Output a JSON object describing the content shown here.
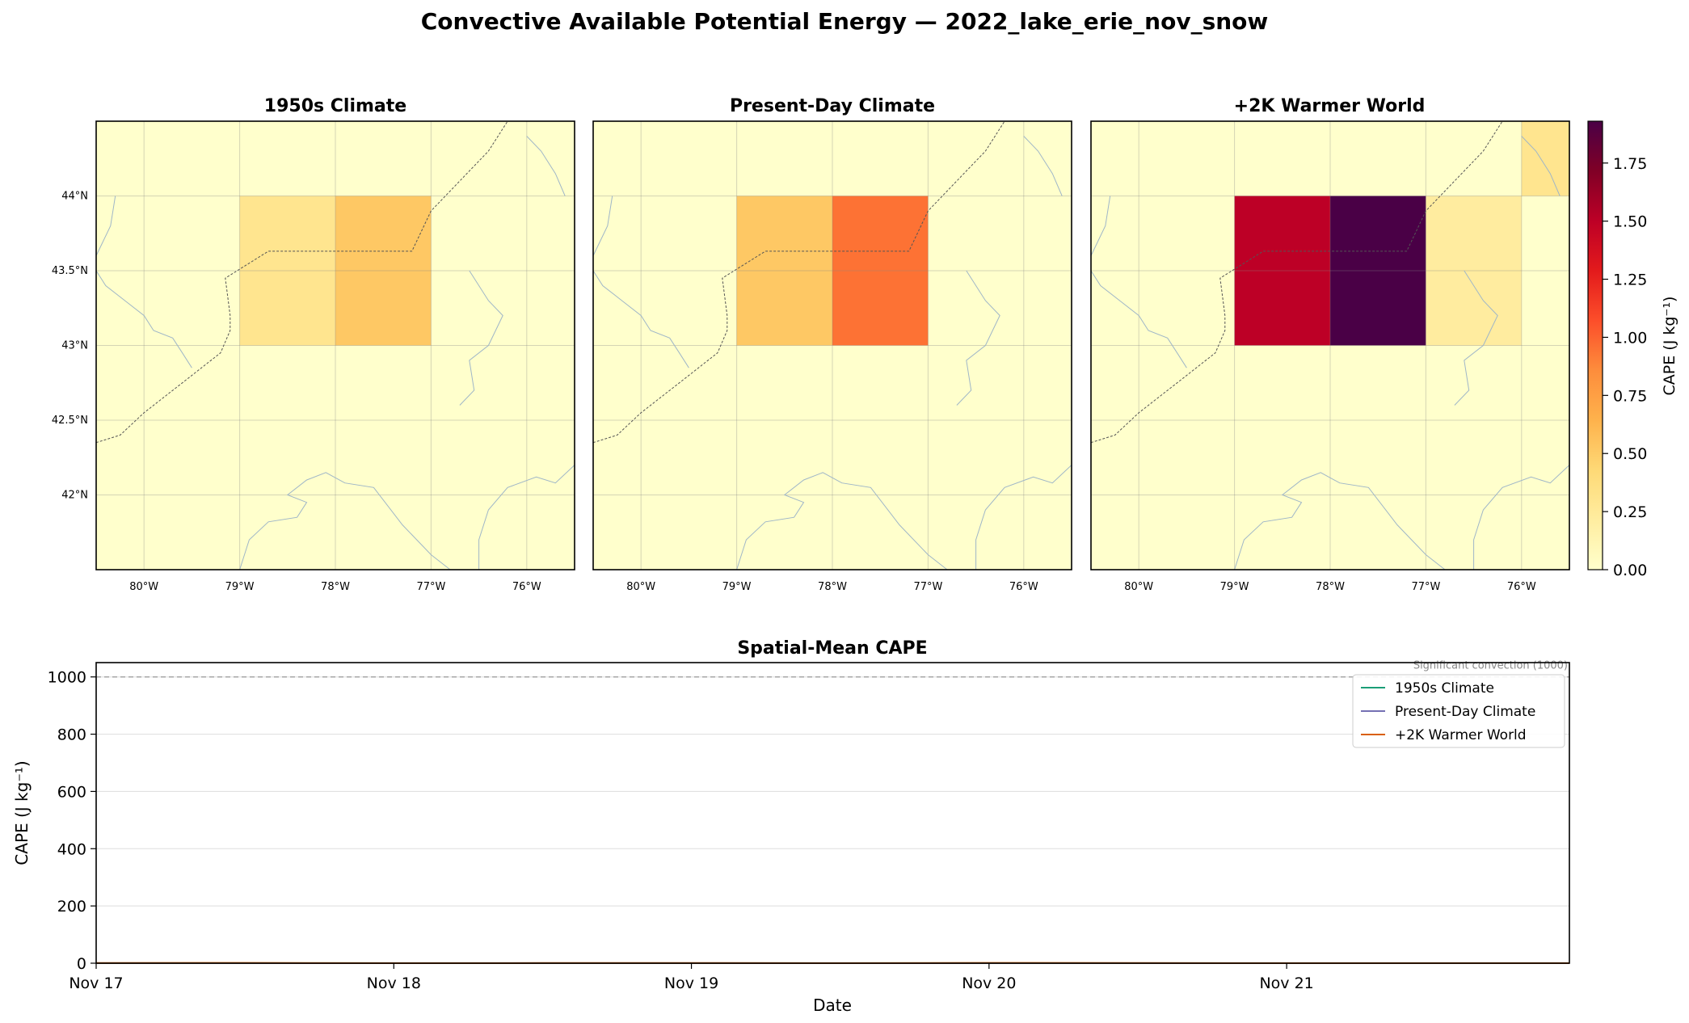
{
  "figure": {
    "suptitle": "Convective Available Potential Energy — 2022_lake_erie_nov_snow"
  },
  "chart_data": [
    {
      "type": "heatmap",
      "title": "1950s Climate",
      "lon_range": [
        -80.5,
        -75.5
      ],
      "lat_range": [
        41.5,
        44.5
      ],
      "lon_ticks": [
        "80°W",
        "79°W",
        "78°W",
        "77°W",
        "76°W"
      ],
      "lat_ticks": [
        "42°N",
        "42.5°N",
        "43°N",
        "43.5°N",
        "44°N"
      ],
      "cells": [
        {
          "lon": [
            -79,
            -78
          ],
          "lat": [
            43,
            44
          ],
          "value": 0.3
        },
        {
          "lon": [
            -78,
            -77
          ],
          "lat": [
            43,
            44
          ],
          "value": 0.52
        }
      ],
      "background_value": 0.0
    },
    {
      "type": "heatmap",
      "title": "Present-Day Climate",
      "lon_range": [
        -80.5,
        -75.5
      ],
      "lat_range": [
        41.5,
        44.5
      ],
      "lon_ticks": [
        "80°W",
        "79°W",
        "78°W",
        "77°W",
        "76°W"
      ],
      "cells": [
        {
          "lon": [
            -79,
            -78
          ],
          "lat": [
            43,
            44
          ],
          "value": 0.52
        },
        {
          "lon": [
            -78,
            -77
          ],
          "lat": [
            43,
            44
          ],
          "value": 0.95
        }
      ],
      "background_value": 0.0
    },
    {
      "type": "heatmap",
      "title": "+2K Warmer World",
      "lon_range": [
        -80.5,
        -75.5
      ],
      "lat_range": [
        41.5,
        44.5
      ],
      "lon_ticks": [
        "80°W",
        "79°W",
        "78°W",
        "77°W",
        "76°W"
      ],
      "cells": [
        {
          "lon": [
            -79,
            -78
          ],
          "lat": [
            43,
            44
          ],
          "value": 1.5
        },
        {
          "lon": [
            -78,
            -77
          ],
          "lat": [
            43,
            44
          ],
          "value": 1.93
        },
        {
          "lon": [
            -77,
            -76
          ],
          "lat": [
            43,
            44
          ],
          "value": 0.22
        },
        {
          "lon": [
            -76,
            -75.5
          ],
          "lat": [
            44,
            44.5
          ],
          "value": 0.3
        }
      ],
      "background_value": 0.0
    },
    {
      "type": "colorbar",
      "label": "CAPE (J kg⁻¹)",
      "range": [
        0,
        1.93
      ],
      "ticks": [
        0.0,
        0.25,
        0.5,
        0.75,
        1.0,
        1.25,
        1.5,
        1.75
      ],
      "tick_labels": [
        "0.00",
        "0.25",
        "0.50",
        "0.75",
        "1.00",
        "1.25",
        "1.50",
        "1.75"
      ],
      "colormap": "YlOrRd-magma",
      "colors": [
        "#ffffcc",
        "#ffeda0",
        "#fed976",
        "#feb24c",
        "#fd8d3c",
        "#fc4e2a",
        "#e31a1c",
        "#bd0026",
        "#800026",
        "#4a0046"
      ]
    },
    {
      "type": "line",
      "title": "Spatial-Mean CAPE",
      "xlabel": "Date",
      "ylabel": "CAPE (J kg⁻¹)",
      "xlim": [
        0,
        4.95
      ],
      "ylim": [
        0,
        1050
      ],
      "x_tick_positions": [
        0,
        1,
        2,
        3,
        4
      ],
      "x_tick_labels": [
        "Nov 17",
        "Nov 18",
        "Nov 19",
        "Nov 20",
        "Nov 21"
      ],
      "y_ticks": [
        0,
        200,
        400,
        600,
        800,
        1000
      ],
      "grid": "y",
      "legend_position": "top-right",
      "reference_line": {
        "y": 1000,
        "label": "Significant convection (1000)"
      },
      "series": [
        {
          "name": "1950s Climate",
          "color": "#1b9e77",
          "x": [
            0,
            0.5,
            1,
            1.5,
            2,
            2.5,
            3,
            3.5,
            4,
            4.5,
            4.95
          ],
          "y": [
            0.1,
            0.2,
            0.05,
            0.1,
            0.1,
            0.05,
            0.15,
            0.1,
            0.05,
            0.05,
            0.05
          ]
        },
        {
          "name": "Present-Day Climate",
          "color": "#7570b3",
          "x": [
            0,
            0.5,
            1,
            1.5,
            2,
            2.5,
            3,
            3.5,
            4,
            4.5,
            4.95
          ],
          "y": [
            0.2,
            0.4,
            0.1,
            0.2,
            0.3,
            0.1,
            0.3,
            0.2,
            0.1,
            0.1,
            0.1
          ]
        },
        {
          "name": "+2K Warmer World",
          "color": "#d95f02",
          "x": [
            0,
            0.5,
            1,
            1.5,
            2,
            2.5,
            3,
            3.5,
            4,
            4.5,
            4.95
          ],
          "y": [
            0.5,
            1.0,
            0.3,
            0.5,
            0.8,
            0.3,
            1.2,
            0.6,
            0.2,
            0.2,
            0.2
          ]
        }
      ]
    }
  ]
}
